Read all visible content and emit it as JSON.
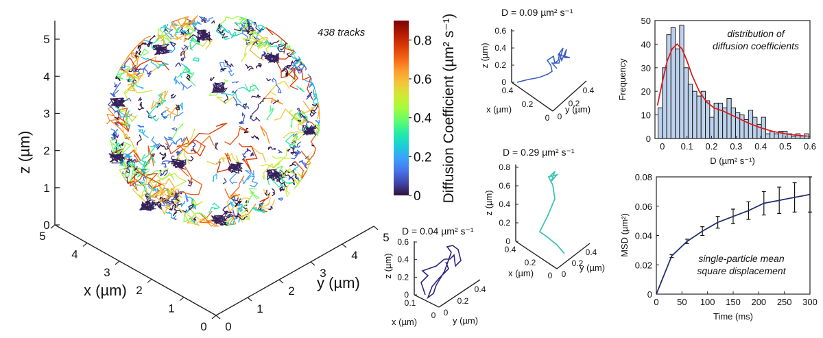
{
  "chart_data": [
    {
      "id": "main3d",
      "type": "scatter",
      "annotation": "438 tracks",
      "xlabel": "x (µm)",
      "ylabel": "y (µm)",
      "zlabel": "z (µm)",
      "x_ticks": [
        "0",
        "1",
        "2",
        "3",
        "4",
        "5"
      ],
      "y_ticks": [
        "0",
        "1",
        "2",
        "3",
        "4",
        "5"
      ],
      "z_ticks": [
        "0",
        "1",
        "2",
        "3",
        "4",
        "5"
      ],
      "xlim": [
        0,
        5
      ],
      "ylim": [
        0,
        5
      ],
      "zlim": [
        0,
        5.5
      ],
      "track_count": 438
    },
    {
      "id": "colorbar",
      "type": "heatmap",
      "label": "Diffusion Coefficient (µm² s⁻¹)",
      "ticks": [
        "0",
        "0.2",
        "0.4",
        "0.6",
        "0.8"
      ],
      "range": [
        0,
        0.9
      ],
      "colormap": [
        "#30123b",
        "#4145ab",
        "#4675ed",
        "#39a2fc",
        "#1bcfd4",
        "#24eca6",
        "#61fc6c",
        "#a4fc3b",
        "#d1e834",
        "#f3c63a",
        "#fe9b2d",
        "#f36315",
        "#d93806",
        "#b11901",
        "#7a0402"
      ]
    },
    {
      "id": "track1",
      "type": "line",
      "title": "D = 0.09 µm² s⁻¹",
      "D": 0.09,
      "color": "#3a5fc4",
      "xlabel": "x (µm)",
      "ylabel": "y (µm)",
      "zlabel": "z (µm)",
      "z_ticks": [
        "0",
        "0.2",
        "0.4",
        "0.6"
      ],
      "x_ticks": [
        "0",
        "0.2",
        "0.4"
      ],
      "y_ticks": [
        "0",
        "0.2",
        "0.4"
      ]
    },
    {
      "id": "track2",
      "type": "line",
      "title": "D = 0.29 µm² s⁻¹",
      "D": 0.29,
      "color": "#3ec4b4",
      "xlabel": "x (µm)",
      "ylabel": "y (µm)",
      "zlabel": "z (µm)",
      "z_ticks": [
        "0",
        "0.2",
        "0.4",
        "0.6",
        "0.8"
      ],
      "x_ticks": [
        "0",
        "0.2",
        "0.4"
      ],
      "y_ticks": [
        "0",
        "0.2",
        "0.4"
      ]
    },
    {
      "id": "track3",
      "type": "line",
      "title": "D = 0.04 µm² s⁻¹",
      "D": 0.04,
      "color": "#2d2380",
      "xlabel": "x (µm)",
      "ylabel": "y (µm)",
      "zlabel": "z (µm)",
      "z_ticks": [
        "0",
        "0.2",
        "0.4",
        "0.6"
      ],
      "x_ticks": [
        "0",
        "0.1"
      ],
      "y_ticks": [
        "0",
        "0.2",
        "0.4"
      ]
    },
    {
      "id": "histogram",
      "type": "bar",
      "annotation": "distribution of diffusion coefficients",
      "xlabel": "D (µm² s⁻¹)",
      "ylabel": "Frequency",
      "xlim": [
        -0.03,
        0.6
      ],
      "ylim": [
        0,
        50
      ],
      "x_ticks": [
        "0",
        "0.1",
        "0.2",
        "0.3",
        "0.4",
        "0.5",
        "0.6"
      ],
      "y_ticks": [
        "0",
        "10",
        "20",
        "30",
        "40",
        "50"
      ],
      "bin_width": 0.0175,
      "bin_start": -0.0175,
      "values": [
        13,
        30,
        44,
        47,
        38,
        48,
        30,
        23,
        20,
        18,
        20,
        16,
        9,
        15,
        15,
        13,
        17,
        13,
        11,
        10,
        8,
        12,
        9,
        6,
        9,
        2,
        3,
        2,
        3,
        3,
        2,
        1,
        2,
        1,
        2,
        1,
        2
      ],
      "fit_line_color": "#e01a1a",
      "fit_x": [
        -0.02,
        0,
        0.02,
        0.04,
        0.06,
        0.08,
        0.1,
        0.12,
        0.15,
        0.18,
        0.21,
        0.25,
        0.3,
        0.35,
        0.4,
        0.45,
        0.5,
        0.55,
        0.59
      ],
      "fit_y": [
        14,
        24,
        33,
        38,
        40,
        38,
        33,
        27,
        20,
        15.5,
        13,
        11.5,
        9,
        6.5,
        4.5,
        3,
        2,
        1.3,
        1
      ]
    },
    {
      "id": "msd",
      "type": "line",
      "annotation": "single-particle mean square displacement",
      "xlabel": "Time (ms)",
      "ylabel": "MSD (µm²)",
      "xlim": [
        0,
        300
      ],
      "ylim": [
        0,
        0.08
      ],
      "x_ticks": [
        "0",
        "50",
        "100",
        "150",
        "200",
        "250",
        "300"
      ],
      "y_ticks": [
        "0",
        "0.02",
        "0.04",
        "0.06",
        "0.08"
      ],
      "line_color": "#1f2f6b",
      "x": [
        0,
        30,
        60,
        90,
        120,
        150,
        180,
        210,
        240,
        270,
        300
      ],
      "y": [
        0,
        0.026,
        0.036,
        0.043,
        0.049,
        0.053,
        0.057,
        0.062,
        0.064,
        0.066,
        0.068
      ],
      "err": [
        0,
        0.001,
        0.0015,
        0.003,
        0.004,
        0.005,
        0.006,
        0.008,
        0.009,
        0.01,
        0.012
      ]
    }
  ]
}
